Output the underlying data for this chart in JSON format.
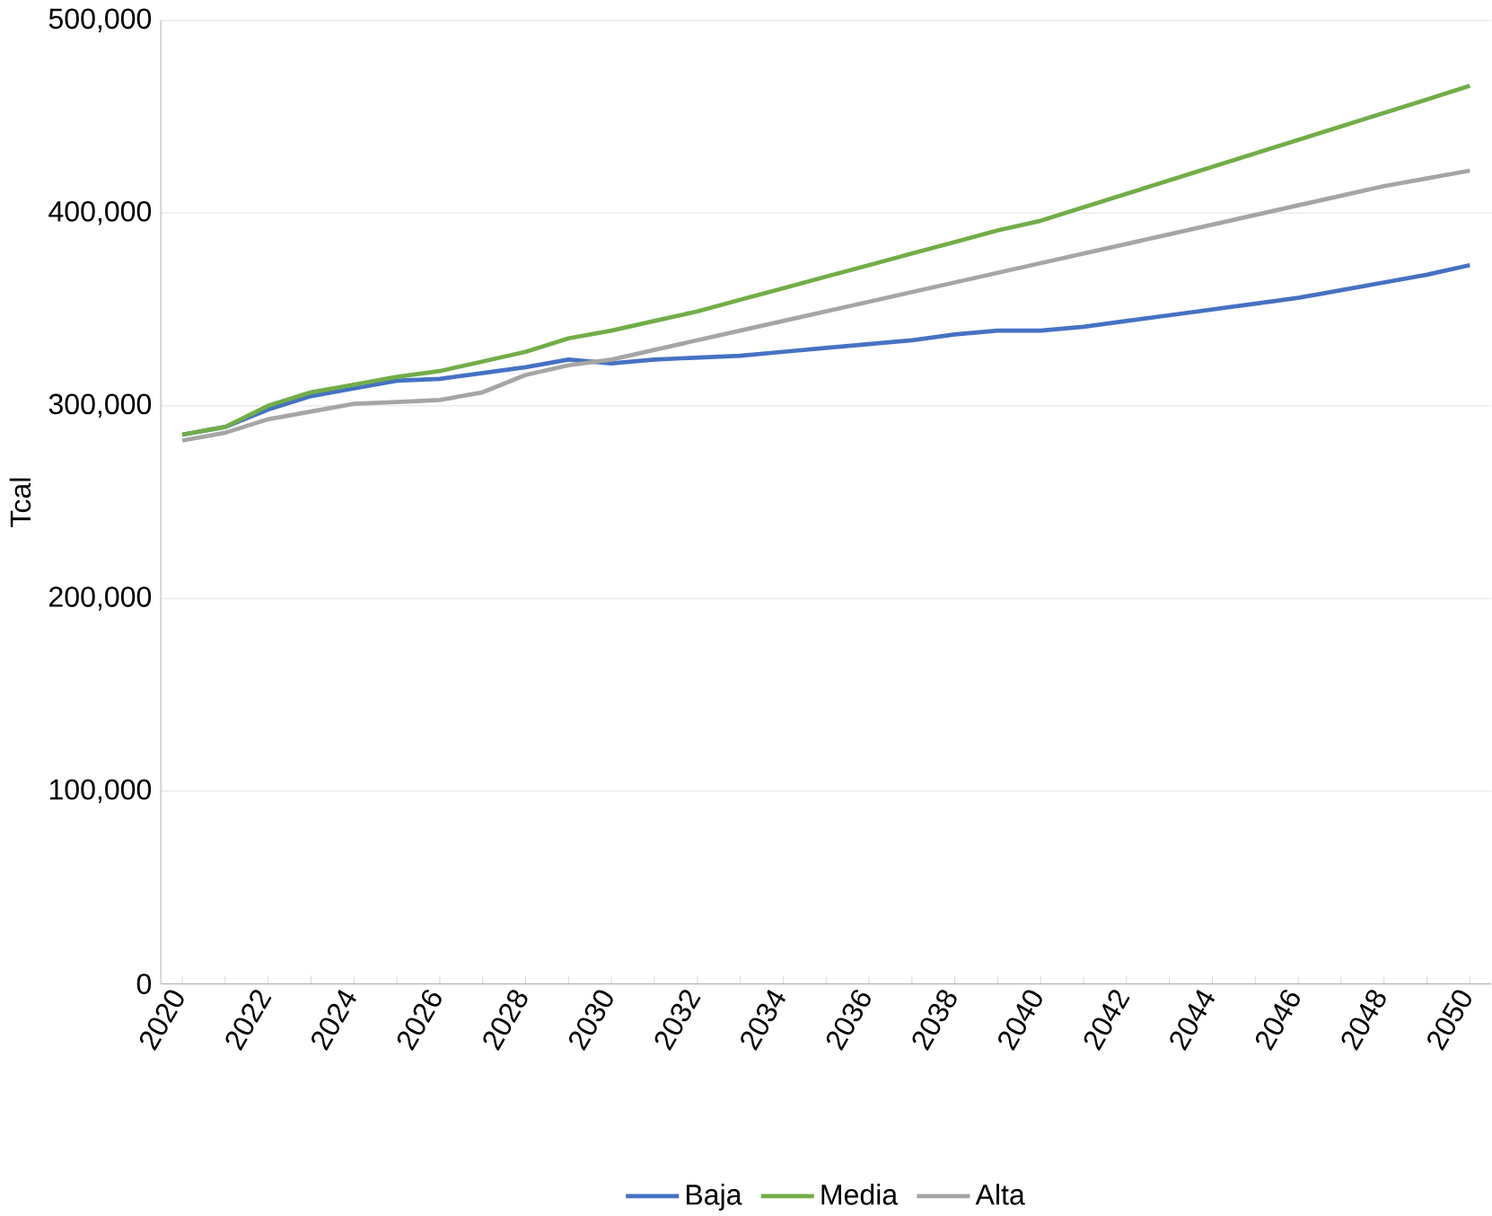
{
  "chart_data": {
    "type": "line",
    "ylabel": "Tcal",
    "categories": [
      "2020",
      null,
      "2022",
      null,
      "2024",
      null,
      "2026",
      null,
      "2028",
      null,
      "2030",
      null,
      "2032",
      null,
      "2034",
      null,
      "2036",
      null,
      "2038",
      null,
      "2040",
      null,
      "2042",
      null,
      "2044",
      null,
      "2046",
      null,
      "2048",
      null,
      "2050"
    ],
    "series": [
      {
        "name": "Baja",
        "color": "#4472c4",
        "values": [
          285000,
          289000,
          298000,
          305000,
          309000,
          313000,
          314000,
          317000,
          320000,
          324000,
          322000,
          324000,
          325000,
          326000,
          328000,
          330000,
          332000,
          334000,
          337000,
          339000,
          339000,
          341000,
          344000,
          347000,
          350000,
          353000,
          356000,
          360000,
          364000,
          368000,
          373000
        ]
      },
      {
        "name": "Media",
        "color": "#70ad47",
        "values": [
          285000,
          289000,
          300000,
          307000,
          311000,
          315000,
          318000,
          323000,
          328000,
          335000,
          339000,
          344000,
          349000,
          355000,
          361000,
          367000,
          373000,
          379000,
          385000,
          391000,
          396000,
          403000,
          410000,
          417000,
          424000,
          431000,
          438000,
          445000,
          452000,
          459000,
          466000
        ]
      },
      {
        "name": "Alta",
        "color": "#a5a5a5",
        "values": [
          282000,
          286000,
          293000,
          297000,
          301000,
          302000,
          303000,
          307000,
          316000,
          321000,
          324000,
          329000,
          334000,
          339000,
          344000,
          349000,
          354000,
          359000,
          364000,
          369000,
          374000,
          379000,
          384000,
          389000,
          394000,
          399000,
          404000,
          409000,
          414000,
          418000,
          422000
        ]
      }
    ],
    "ylim": [
      0,
      500000
    ],
    "yticks": [
      {
        "value": 0,
        "label": "0"
      },
      {
        "value": 100000,
        "label": "100,000"
      },
      {
        "value": 200000,
        "label": "200,000"
      },
      {
        "value": 300000,
        "label": "300,000"
      },
      {
        "value": 400000,
        "label": "400,000"
      },
      {
        "value": 500000,
        "label": "500,000"
      }
    ],
    "grid": "y",
    "legend": "bottom",
    "marker": "none",
    "line_style": "solid"
  }
}
